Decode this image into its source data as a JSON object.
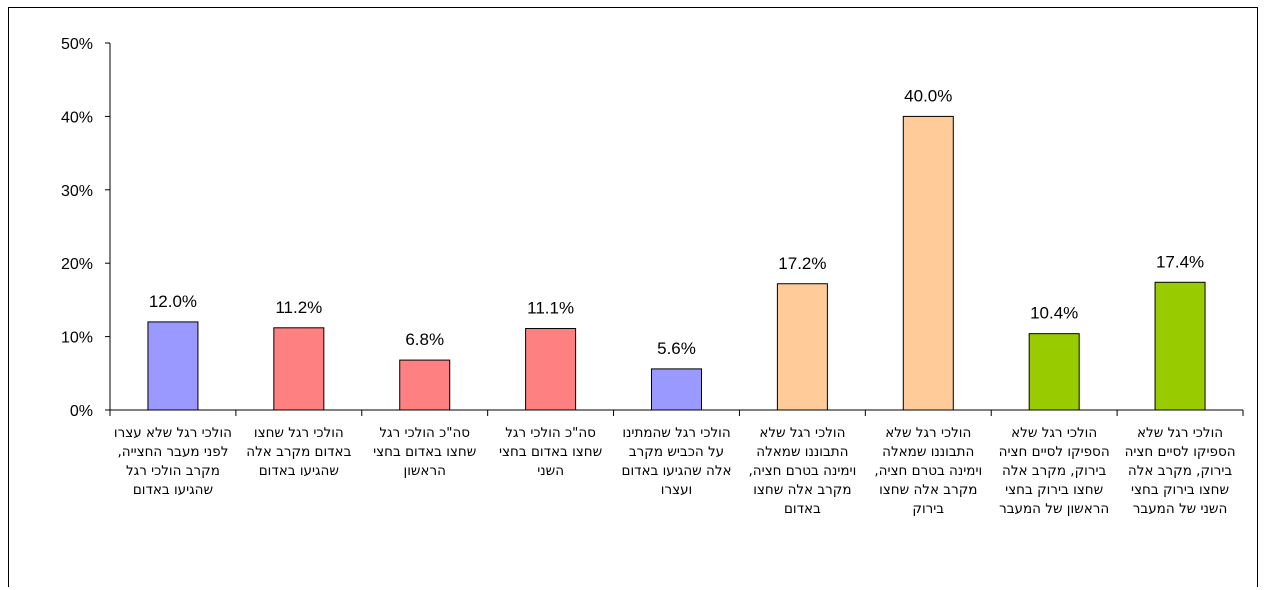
{
  "chart_data": {
    "type": "bar",
    "title": "",
    "xlabel": "",
    "ylabel": "",
    "ylim": [
      0,
      50
    ],
    "yticks": [
      "0%",
      "10%",
      "20%",
      "30%",
      "40%",
      "50%"
    ],
    "grid": false,
    "legend": "none",
    "categories": [
      "הולכי רגל שלא עצרו לפני מעבר החצייה, מקרב הולכי רגל שהגיעו באדום",
      "הולכי רגל שחצו באדום מקרב אלה שהגיעו באדום",
      "סה\"כ הולכי רגל שחצו באדום בחצי הראשון",
      "סה\"כ הולכי רגל שחצו באדום בחצי השני",
      "הולכי רגל שהמתינו על הכביש מקרב אלה שהגיעו באדום ועצרו",
      "הולכי רגל שלא התבוננו שמאלה וימינה בטרם חציה, מקרב אלה שחצו באדום",
      "הולכי רגל שלא התבוננו שמאלה וימינה בטרם חציה, מקרב אלה שחצו בירוק",
      "הולכי רגל שלא הספיקו לסיים חציה בירוק, מקרב אלה שחצו בירוק בחצי הראשון של המעבר",
      "הולכי רגל שלא הספיקו לסיים חציה בירוק, מקרב אלה שחצו בירוק בחצי השני של המעבר"
    ],
    "values": [
      12.0,
      11.2,
      6.8,
      11.1,
      5.6,
      17.2,
      40.0,
      10.4,
      17.4
    ],
    "data_labels": [
      "12.0%",
      "11.2%",
      "6.8%",
      "11.1%",
      "5.6%",
      "17.2%",
      "40.0%",
      "10.4%",
      "17.4%"
    ],
    "bar_colors": [
      "#9999ff",
      "#ff8080",
      "#ff8080",
      "#ff8080",
      "#9999ff",
      "#ffcc99",
      "#ffcc99",
      "#99cc00",
      "#99cc00"
    ]
  }
}
